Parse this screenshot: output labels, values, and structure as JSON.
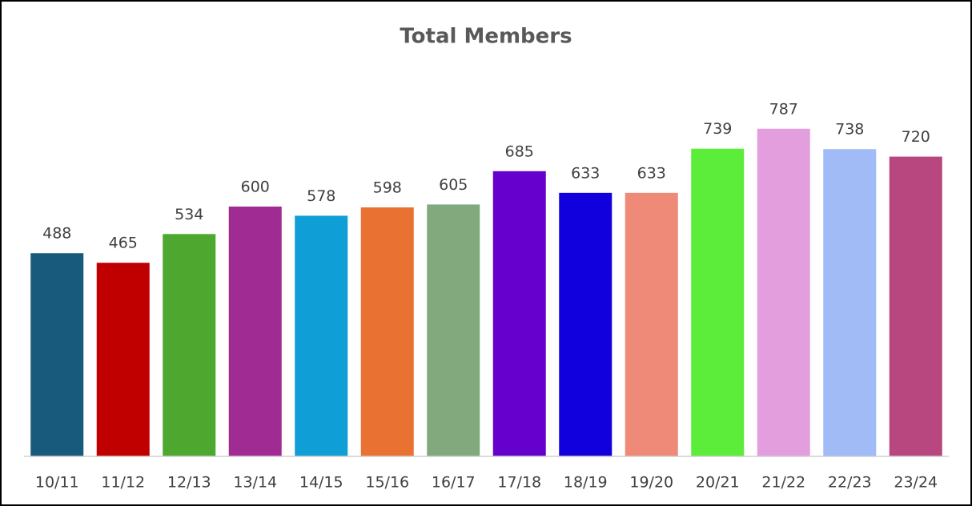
{
  "chart_data": {
    "type": "bar",
    "title": "Total Members",
    "categories": [
      "10/11",
      "11/12",
      "12/13",
      "13/14",
      "14/15",
      "15/16",
      "16/17",
      "17/18",
      "18/19",
      "19/20",
      "20/21",
      "21/22",
      "22/23",
      "23/24"
    ],
    "values": [
      488,
      465,
      534,
      600,
      578,
      598,
      605,
      685,
      633,
      633,
      739,
      787,
      738,
      720
    ],
    "colors": [
      "#175a7c",
      "#c00000",
      "#4ea72e",
      "#a02b93",
      "#0f9ed5",
      "#e97132",
      "#81a97d",
      "#6600cc",
      "#1100dd",
      "#ef8a78",
      "#5ced3a",
      "#e39edd",
      "#a0bbf6",
      "#b8477f"
    ],
    "ylim": [
      0,
      900
    ]
  }
}
